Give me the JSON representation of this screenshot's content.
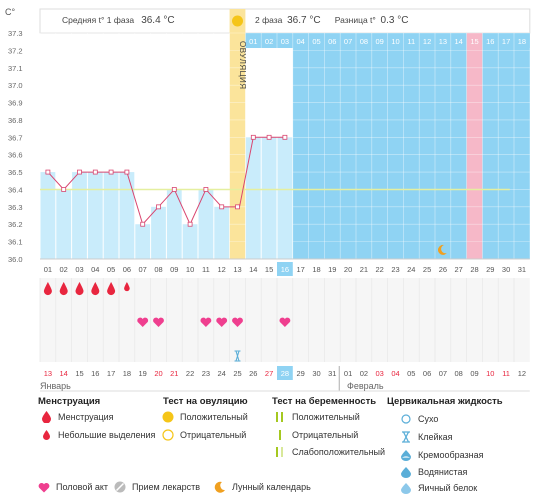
{
  "chart": {
    "y_axis_unit": "C°",
    "header": {
      "phase1_label": "Средняя t° 1 фаза",
      "phase1_value": "36.4 °C",
      "phase2_label": "2 фаза",
      "phase2_value": "36.7 °C",
      "diff_label": "Разница t°",
      "diff_value": "0.3 °C"
    },
    "ovulation_label": "ОВУЛЯЦИЯ",
    "y_ticks": [
      "37.3",
      "37.2",
      "37.1",
      "37.0",
      "36.9",
      "36.8",
      "36.7",
      "36.6",
      "36.5",
      "36.4",
      "36.3",
      "36.2",
      "36.1",
      "36.0"
    ],
    "cycle_days": [
      "01",
      "02",
      "03",
      "04",
      "05",
      "06",
      "07",
      "08",
      "09",
      "10",
      "11",
      "12",
      "13",
      "14",
      "15",
      "16",
      "17",
      "18",
      "19",
      "20",
      "21",
      "22",
      "23",
      "24",
      "25",
      "26",
      "27",
      "28",
      "29",
      "30",
      "31"
    ],
    "top_days": [
      "01",
      "02",
      "03",
      "04",
      "05",
      "06",
      "07",
      "08",
      "09",
      "10",
      "11",
      "12",
      "13",
      "14",
      "15",
      "16",
      "17",
      "18"
    ],
    "calendar_dates": [
      "13",
      "14",
      "15",
      "16",
      "17",
      "18",
      "19",
      "20",
      "21",
      "22",
      "23",
      "24",
      "25",
      "26",
      "27",
      "28",
      "29",
      "30",
      "31",
      "01",
      "02",
      "03",
      "04",
      "05",
      "06",
      "07",
      "08",
      "09",
      "10",
      "11",
      "12"
    ],
    "months": {
      "first": "Январь",
      "second": "Февраль"
    },
    "colors": {
      "sky": "#8fd3f3",
      "bar": "#c9ecfb",
      "line": "#d9456f",
      "ovulation": "#fbe49b",
      "pink": "#f6b8c8",
      "coverline": "#e5ef9f",
      "highlight": "#8fd3f3",
      "menstruation": "#e8263f",
      "heart": "#ef3f8f",
      "moon": "#f0a020",
      "weekend": "#e8263f"
    }
  },
  "chart_data": {
    "type": "line",
    "xlabel": "",
    "ylabel": "C°",
    "ylim": [
      36.0,
      37.3
    ],
    "x": [
      1,
      2,
      3,
      4,
      5,
      6,
      7,
      8,
      9,
      10,
      11,
      12,
      13,
      14,
      15,
      16
    ],
    "y": [
      36.5,
      36.4,
      36.5,
      36.5,
      36.5,
      36.5,
      36.2,
      36.3,
      36.4,
      36.2,
      36.4,
      36.3,
      36.3,
      36.7,
      36.7,
      36.7
    ],
    "coverline": 36.4,
    "ovulation_day": 13,
    "current_day": 16,
    "menstruation": [
      {
        "day": 1,
        "type": "Менструация"
      },
      {
        "day": 2,
        "type": "Менструация"
      },
      {
        "day": 3,
        "type": "Менструация"
      },
      {
        "day": 4,
        "type": "Менструация"
      },
      {
        "day": 5,
        "type": "Менструация"
      },
      {
        "day": 6,
        "type": "Небольшие выделения"
      }
    ],
    "intercourse_days": [
      7,
      8,
      11,
      12,
      13,
      16
    ],
    "cervical_fluid": [
      {
        "day": 13,
        "type": "Клейкая"
      }
    ],
    "moon_day": 26,
    "pink_day": 28
  },
  "legend": {
    "menstruation": {
      "title": "Менструация",
      "items": [
        "Менструация",
        "Небольшие выделения"
      ]
    },
    "ovulation_test": {
      "title": "Тест на овуляцию",
      "items": [
        "Положительный",
        "Отрицательный"
      ]
    },
    "pregnancy_test": {
      "title": "Тест на беременность",
      "items": [
        "Положительный",
        "Отрицательный",
        "Слабоположительный"
      ]
    },
    "cervical": {
      "title": "Цервикальная жидкость",
      "items": [
        "Сухо",
        "Клейкая",
        "Кремообразная",
        "Водянистая",
        "Яичный белок"
      ]
    },
    "bottom": [
      "Половой акт",
      "Прием лекарств",
      "Лунный календарь"
    ]
  }
}
